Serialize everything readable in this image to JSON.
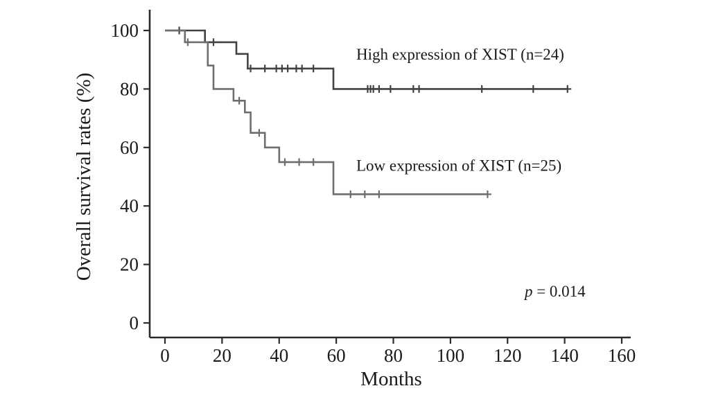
{
  "chart_data": {
    "type": "line",
    "subtype": "kaplan-meier-step-survival",
    "title": "",
    "xlabel": "Months",
    "ylabel": "Overall survival rates (%)",
    "xlim": [
      0,
      160
    ],
    "ylim": [
      0,
      100
    ],
    "xticks": [
      0,
      20,
      40,
      60,
      80,
      100,
      120,
      140,
      160
    ],
    "yticks": [
      0,
      20,
      40,
      60,
      80,
      100
    ],
    "grid": false,
    "legend_position": "inline-labels",
    "axis_color": "#2b2b2b",
    "series": [
      {
        "name": "High expression of XIST (n=24)",
        "color": "#424242",
        "label_pos": {
          "x": 67,
          "y": 90
        },
        "steps": [
          [
            0,
            100
          ],
          [
            14,
            96
          ],
          [
            25,
            92
          ],
          [
            29,
            87
          ],
          [
            59,
            80
          ],
          [
            141,
            80
          ]
        ],
        "censors": [
          [
            5,
            100
          ],
          [
            17,
            96
          ],
          [
            30,
            87
          ],
          [
            35,
            87
          ],
          [
            39,
            87
          ],
          [
            41,
            87
          ],
          [
            43,
            87
          ],
          [
            46,
            87
          ],
          [
            48,
            87
          ],
          [
            52,
            87
          ],
          [
            71,
            80
          ],
          [
            72,
            80
          ],
          [
            73,
            80
          ],
          [
            75,
            80
          ],
          [
            79,
            80
          ],
          [
            87,
            80
          ],
          [
            89,
            80
          ],
          [
            111,
            80
          ],
          [
            129,
            80
          ],
          [
            141,
            80
          ]
        ]
      },
      {
        "name": "Low expression of XIST (n=25)",
        "color": "#6e6e6e",
        "label_pos": {
          "x": 67,
          "y": 52
        },
        "steps": [
          [
            0,
            100
          ],
          [
            7,
            96
          ],
          [
            15,
            88
          ],
          [
            17,
            80
          ],
          [
            24,
            76
          ],
          [
            28,
            72
          ],
          [
            30,
            65
          ],
          [
            35,
            60
          ],
          [
            40,
            55
          ],
          [
            59,
            44
          ],
          [
            113,
            44
          ]
        ],
        "censors": [
          [
            8,
            96
          ],
          [
            26,
            76
          ],
          [
            33,
            65
          ],
          [
            42,
            55
          ],
          [
            47,
            55
          ],
          [
            52,
            55
          ],
          [
            65,
            44
          ],
          [
            70,
            44
          ],
          [
            75,
            44
          ],
          [
            113,
            44
          ]
        ]
      }
    ],
    "annotation": {
      "italic": "p",
      "rest": " = 0.014",
      "x": 126,
      "y": 9
    }
  }
}
